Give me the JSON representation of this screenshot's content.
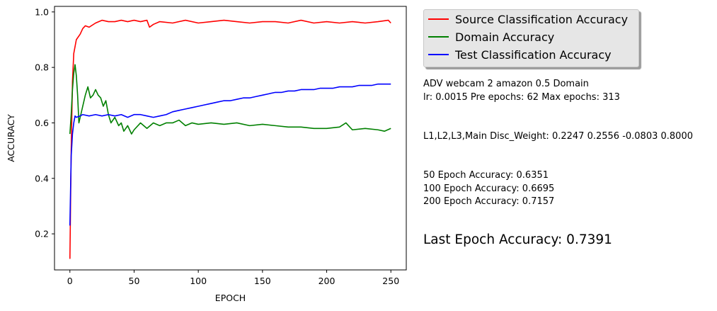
{
  "chart_data": {
    "type": "line",
    "xlabel": "EPOCH",
    "ylabel": "ACCURACY",
    "xlim": [
      -12,
      262
    ],
    "ylim": [
      0.07,
      1.02
    ],
    "xticks": [
      0,
      50,
      100,
      150,
      200,
      250
    ],
    "yticks": [
      0.2,
      0.4,
      0.6,
      0.8,
      1.0
    ],
    "xtick_labels": [
      "0",
      "50",
      "100",
      "150",
      "200",
      "250"
    ],
    "ytick_labels": [
      "0.2",
      "0.4",
      "0.6",
      "0.8",
      "1.0"
    ],
    "grid": false,
    "legend_position": "outside-top-right",
    "series": [
      {
        "name": "Source Classification Accuracy",
        "color": "#ff0000",
        "points": [
          [
            0,
            0.11
          ],
          [
            1,
            0.5
          ],
          [
            2,
            0.75
          ],
          [
            3,
            0.85
          ],
          [
            5,
            0.9
          ],
          [
            8,
            0.92
          ],
          [
            10,
            0.94
          ],
          [
            12,
            0.95
          ],
          [
            15,
            0.945
          ],
          [
            20,
            0.96
          ],
          [
            25,
            0.97
          ],
          [
            30,
            0.965
          ],
          [
            35,
            0.965
          ],
          [
            40,
            0.97
          ],
          [
            45,
            0.965
          ],
          [
            50,
            0.97
          ],
          [
            55,
            0.965
          ],
          [
            60,
            0.97
          ],
          [
            62,
            0.945
          ],
          [
            65,
            0.955
          ],
          [
            70,
            0.965
          ],
          [
            80,
            0.96
          ],
          [
            90,
            0.97
          ],
          [
            100,
            0.96
          ],
          [
            110,
            0.965
          ],
          [
            120,
            0.97
          ],
          [
            130,
            0.965
          ],
          [
            140,
            0.96
          ],
          [
            150,
            0.965
          ],
          [
            160,
            0.965
          ],
          [
            170,
            0.96
          ],
          [
            180,
            0.97
          ],
          [
            190,
            0.96
          ],
          [
            200,
            0.965
          ],
          [
            210,
            0.96
          ],
          [
            220,
            0.965
          ],
          [
            230,
            0.96
          ],
          [
            240,
            0.965
          ],
          [
            248,
            0.97
          ],
          [
            250,
            0.96
          ]
        ]
      },
      {
        "name": "Domain Accuracy",
        "color": "#008000",
        "points": [
          [
            0,
            0.56
          ],
          [
            1,
            0.63
          ],
          [
            2,
            0.72
          ],
          [
            3,
            0.78
          ],
          [
            4,
            0.81
          ],
          [
            5,
            0.77
          ],
          [
            6,
            0.7
          ],
          [
            7,
            0.6
          ],
          [
            8,
            0.62
          ],
          [
            10,
            0.66
          ],
          [
            12,
            0.7
          ],
          [
            14,
            0.73
          ],
          [
            16,
            0.69
          ],
          [
            18,
            0.7
          ],
          [
            20,
            0.72
          ],
          [
            22,
            0.7
          ],
          [
            24,
            0.69
          ],
          [
            26,
            0.66
          ],
          [
            28,
            0.68
          ],
          [
            30,
            0.63
          ],
          [
            32,
            0.6
          ],
          [
            35,
            0.62
          ],
          [
            38,
            0.59
          ],
          [
            40,
            0.6
          ],
          [
            42,
            0.57
          ],
          [
            45,
            0.59
          ],
          [
            48,
            0.56
          ],
          [
            50,
            0.575
          ],
          [
            55,
            0.6
          ],
          [
            60,
            0.58
          ],
          [
            65,
            0.6
          ],
          [
            70,
            0.59
          ],
          [
            75,
            0.6
          ],
          [
            80,
            0.6
          ],
          [
            85,
            0.61
          ],
          [
            90,
            0.59
          ],
          [
            95,
            0.6
          ],
          [
            100,
            0.595
          ],
          [
            110,
            0.6
          ],
          [
            120,
            0.595
          ],
          [
            130,
            0.6
          ],
          [
            140,
            0.59
          ],
          [
            150,
            0.595
          ],
          [
            160,
            0.59
          ],
          [
            170,
            0.585
          ],
          [
            180,
            0.585
          ],
          [
            190,
            0.58
          ],
          [
            200,
            0.58
          ],
          [
            210,
            0.585
          ],
          [
            215,
            0.6
          ],
          [
            220,
            0.575
          ],
          [
            230,
            0.58
          ],
          [
            240,
            0.575
          ],
          [
            245,
            0.57
          ],
          [
            250,
            0.58
          ]
        ]
      },
      {
        "name": "Test Classification Accuracy",
        "color": "#0000ff",
        "points": [
          [
            0,
            0.23
          ],
          [
            1,
            0.48
          ],
          [
            2,
            0.56
          ],
          [
            3,
            0.6
          ],
          [
            4,
            0.625
          ],
          [
            5,
            0.62
          ],
          [
            8,
            0.625
          ],
          [
            10,
            0.63
          ],
          [
            15,
            0.625
          ],
          [
            20,
            0.63
          ],
          [
            25,
            0.625
          ],
          [
            30,
            0.63
          ],
          [
            35,
            0.625
          ],
          [
            40,
            0.63
          ],
          [
            45,
            0.62
          ],
          [
            50,
            0.63
          ],
          [
            55,
            0.63
          ],
          [
            60,
            0.625
          ],
          [
            65,
            0.62
          ],
          [
            70,
            0.625
          ],
          [
            75,
            0.63
          ],
          [
            80,
            0.64
          ],
          [
            85,
            0.645
          ],
          [
            90,
            0.65
          ],
          [
            95,
            0.655
          ],
          [
            100,
            0.66
          ],
          [
            105,
            0.665
          ],
          [
            110,
            0.67
          ],
          [
            115,
            0.675
          ],
          [
            120,
            0.68
          ],
          [
            125,
            0.68
          ],
          [
            130,
            0.685
          ],
          [
            135,
            0.69
          ],
          [
            140,
            0.69
          ],
          [
            145,
            0.695
          ],
          [
            150,
            0.7
          ],
          [
            155,
            0.705
          ],
          [
            160,
            0.71
          ],
          [
            165,
            0.71
          ],
          [
            170,
            0.715
          ],
          [
            175,
            0.715
          ],
          [
            180,
            0.72
          ],
          [
            185,
            0.72
          ],
          [
            190,
            0.72
          ],
          [
            195,
            0.725
          ],
          [
            200,
            0.725
          ],
          [
            205,
            0.725
          ],
          [
            210,
            0.73
          ],
          [
            215,
            0.73
          ],
          [
            220,
            0.73
          ],
          [
            225,
            0.735
          ],
          [
            230,
            0.735
          ],
          [
            235,
            0.735
          ],
          [
            240,
            0.74
          ],
          [
            245,
            0.74
          ],
          [
            250,
            0.74
          ]
        ]
      }
    ]
  },
  "info": {
    "line1": "ADV webcam 2 amazon 0.5 Domain",
    "line2": "lr: 0.0015 Pre epochs: 62 Max epochs: 313",
    "weights": "L1,L2,L3,Main Disc_Weight: 0.2247 0.2556 -0.0803 0.8000",
    "acc50": "50 Epoch Accuracy: 0.6351",
    "acc100": "100 Epoch Accuracy: 0.6695",
    "acc200": "200 Epoch Accuracy: 0.7157",
    "last": "Last Epoch Accuracy: 0.7391"
  }
}
